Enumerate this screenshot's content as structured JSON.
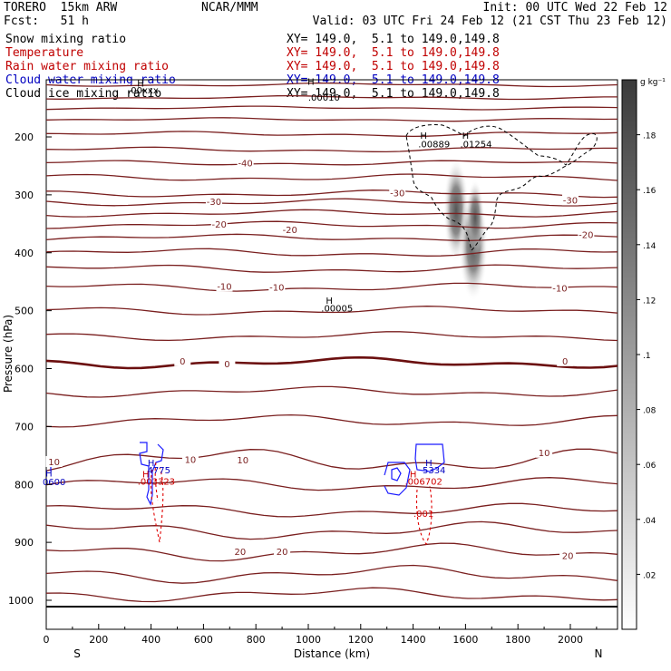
{
  "header": {
    "model": "TORERO  15km ARW",
    "org": "NCAR/MMM",
    "init": "Init: 00 UTC Wed 22 Feb 12",
    "fcst": "Fcst:   51 h",
    "valid": "Valid: 03 UTC Fri 24 Feb 12 (21 CST Thu 23 Feb 12)"
  },
  "fields": [
    {
      "name": "Snow mixing ratio",
      "xy": "",
      "color": "#000000"
    },
    {
      "name": "Temperature",
      "xy": "XY= 149.0,  5.1 to 149.0,149.8",
      "color": "#c00000"
    },
    {
      "name": "Rain water mixing ratio",
      "xy": "XY= 149.0,  5.1 to 149.0,149.8",
      "color": "#c00000"
    },
    {
      "name": "Cloud water mixing ratio",
      "xy": "XY= 149.0,  5.1 to 149.0,149.8",
      "color": "#0000c0"
    },
    {
      "name": "Cloud ice mixing ratio",
      "xy": "XY= 149.0,  5.1 to 149.0,149.8",
      "color": "#000000"
    }
  ],
  "snow_xy": "XY= 149.0,  5.1 to 149.0,149.8",
  "colorbar": {
    "unit": "g kg⁻¹",
    "ticks": [
      ".02",
      ".04",
      ".06",
      ".08",
      ".1",
      ".12",
      ".14",
      ".16",
      ".18"
    ]
  },
  "chart_data": {
    "type": "contour",
    "xlabel": "Distance (km)",
    "ylabel": "Pressure (hPa)",
    "xlim": [
      0,
      2180
    ],
    "ylim": [
      1050,
      100
    ],
    "xticks": [
      0,
      200,
      400,
      600,
      800,
      1000,
      1200,
      1400,
      1600,
      1800,
      2000
    ],
    "yticks": [
      200,
      300,
      400,
      500,
      600,
      700,
      800,
      900,
      1000
    ],
    "x_end_labels": {
      "left": "S",
      "right": "N"
    },
    "temperature_labels": [
      {
        "x": 1340,
        "p": 298,
        "text": "-30"
      },
      {
        "x": 760,
        "p": 246,
        "text": "-40"
      },
      {
        "x": 640,
        "p": 313,
        "text": "-30"
      },
      {
        "x": 2000,
        "p": 310,
        "text": "-30"
      },
      {
        "x": 660,
        "p": 352,
        "text": "-20"
      },
      {
        "x": 930,
        "p": 361,
        "text": "-20"
      },
      {
        "x": 2060,
        "p": 370,
        "text": "-20"
      },
      {
        "x": 680,
        "p": 459,
        "text": "-10"
      },
      {
        "x": 880,
        "p": 461,
        "text": "-10"
      },
      {
        "x": 1960,
        "p": 462,
        "text": "-10"
      },
      {
        "x": 520,
        "p": 588,
        "text": "0"
      },
      {
        "x": 690,
        "p": 593,
        "text": "0"
      },
      {
        "x": 1980,
        "p": 588,
        "text": "0"
      },
      {
        "x": 30,
        "p": 762,
        "text": "10"
      },
      {
        "x": 550,
        "p": 758,
        "text": "10"
      },
      {
        "x": 750,
        "p": 759,
        "text": "10"
      },
      {
        "x": 1900,
        "p": 746,
        "text": "10"
      },
      {
        "x": 740,
        "p": 917,
        "text": "20"
      },
      {
        "x": 900,
        "p": 917,
        "text": "20"
      },
      {
        "x": 1990,
        "p": 924,
        "text": "20"
      }
    ],
    "maxima_labels": [
      {
        "x": 360,
        "p": 113,
        "text": "H",
        "field": "Cloud ice mixing ratio"
      },
      {
        "x": 370,
        "p": 125,
        "text": ".00xxx",
        "field": "Cloud ice mixing ratio"
      },
      {
        "x": 1010,
        "p": 110,
        "text": "H",
        "field": "Cloud ice mixing ratio"
      },
      {
        "x": 1060,
        "p": 137,
        "text": ".00010",
        "field": "Cloud ice mixing ratio"
      },
      {
        "x": 1440,
        "p": 203,
        "text": "H",
        "field": "Cloud ice mixing ratio"
      },
      {
        "x": 1480,
        "p": 218,
        "text": ".00889",
        "field": "Cloud ice mixing ratio"
      },
      {
        "x": 1600,
        "p": 203,
        "text": "H",
        "field": "Cloud ice mixing ratio"
      },
      {
        "x": 1640,
        "p": 218,
        "text": ".01254",
        "field": "Cloud ice mixing ratio"
      },
      {
        "x": 1080,
        "p": 488,
        "text": "H",
        "field": "Cloud ice mixing ratio"
      },
      {
        "x": 1110,
        "p": 501,
        "text": ".00005",
        "field": "Cloud ice mixing ratio"
      },
      {
        "x": 10,
        "p": 786,
        "text": "H",
        "field": "Cloud water mixing ratio"
      },
      {
        "x": 30,
        "p": 801,
        "text": "0600",
        "field": "Cloud water mixing ratio"
      },
      {
        "x": 400,
        "p": 768,
        "text": "H",
        "field": "Cloud water mixing ratio"
      },
      {
        "x": 430,
        "p": 781,
        "text": "4775",
        "field": "Cloud water mixing ratio"
      },
      {
        "x": 1460,
        "p": 768,
        "text": "H",
        "field": "Cloud water mixing ratio"
      },
      {
        "x": 1480,
        "p": 781,
        "text": "5334",
        "field": "Cloud water mixing ratio"
      },
      {
        "x": 380,
        "p": 788,
        "text": "H",
        "field": "Rain water mixing ratio"
      },
      {
        "x": 420,
        "p": 800,
        "text": ".003323",
        "field": "Rain water mixing ratio"
      },
      {
        "x": 1400,
        "p": 788,
        "text": "H",
        "field": "Rain water mixing ratio"
      },
      {
        "x": 1440,
        "p": 800,
        "text": ".006702",
        "field": "Rain water mixing ratio"
      },
      {
        "x": 1440,
        "p": 856,
        "text": ".001",
        "field": "Rain water mixing ratio"
      }
    ]
  }
}
